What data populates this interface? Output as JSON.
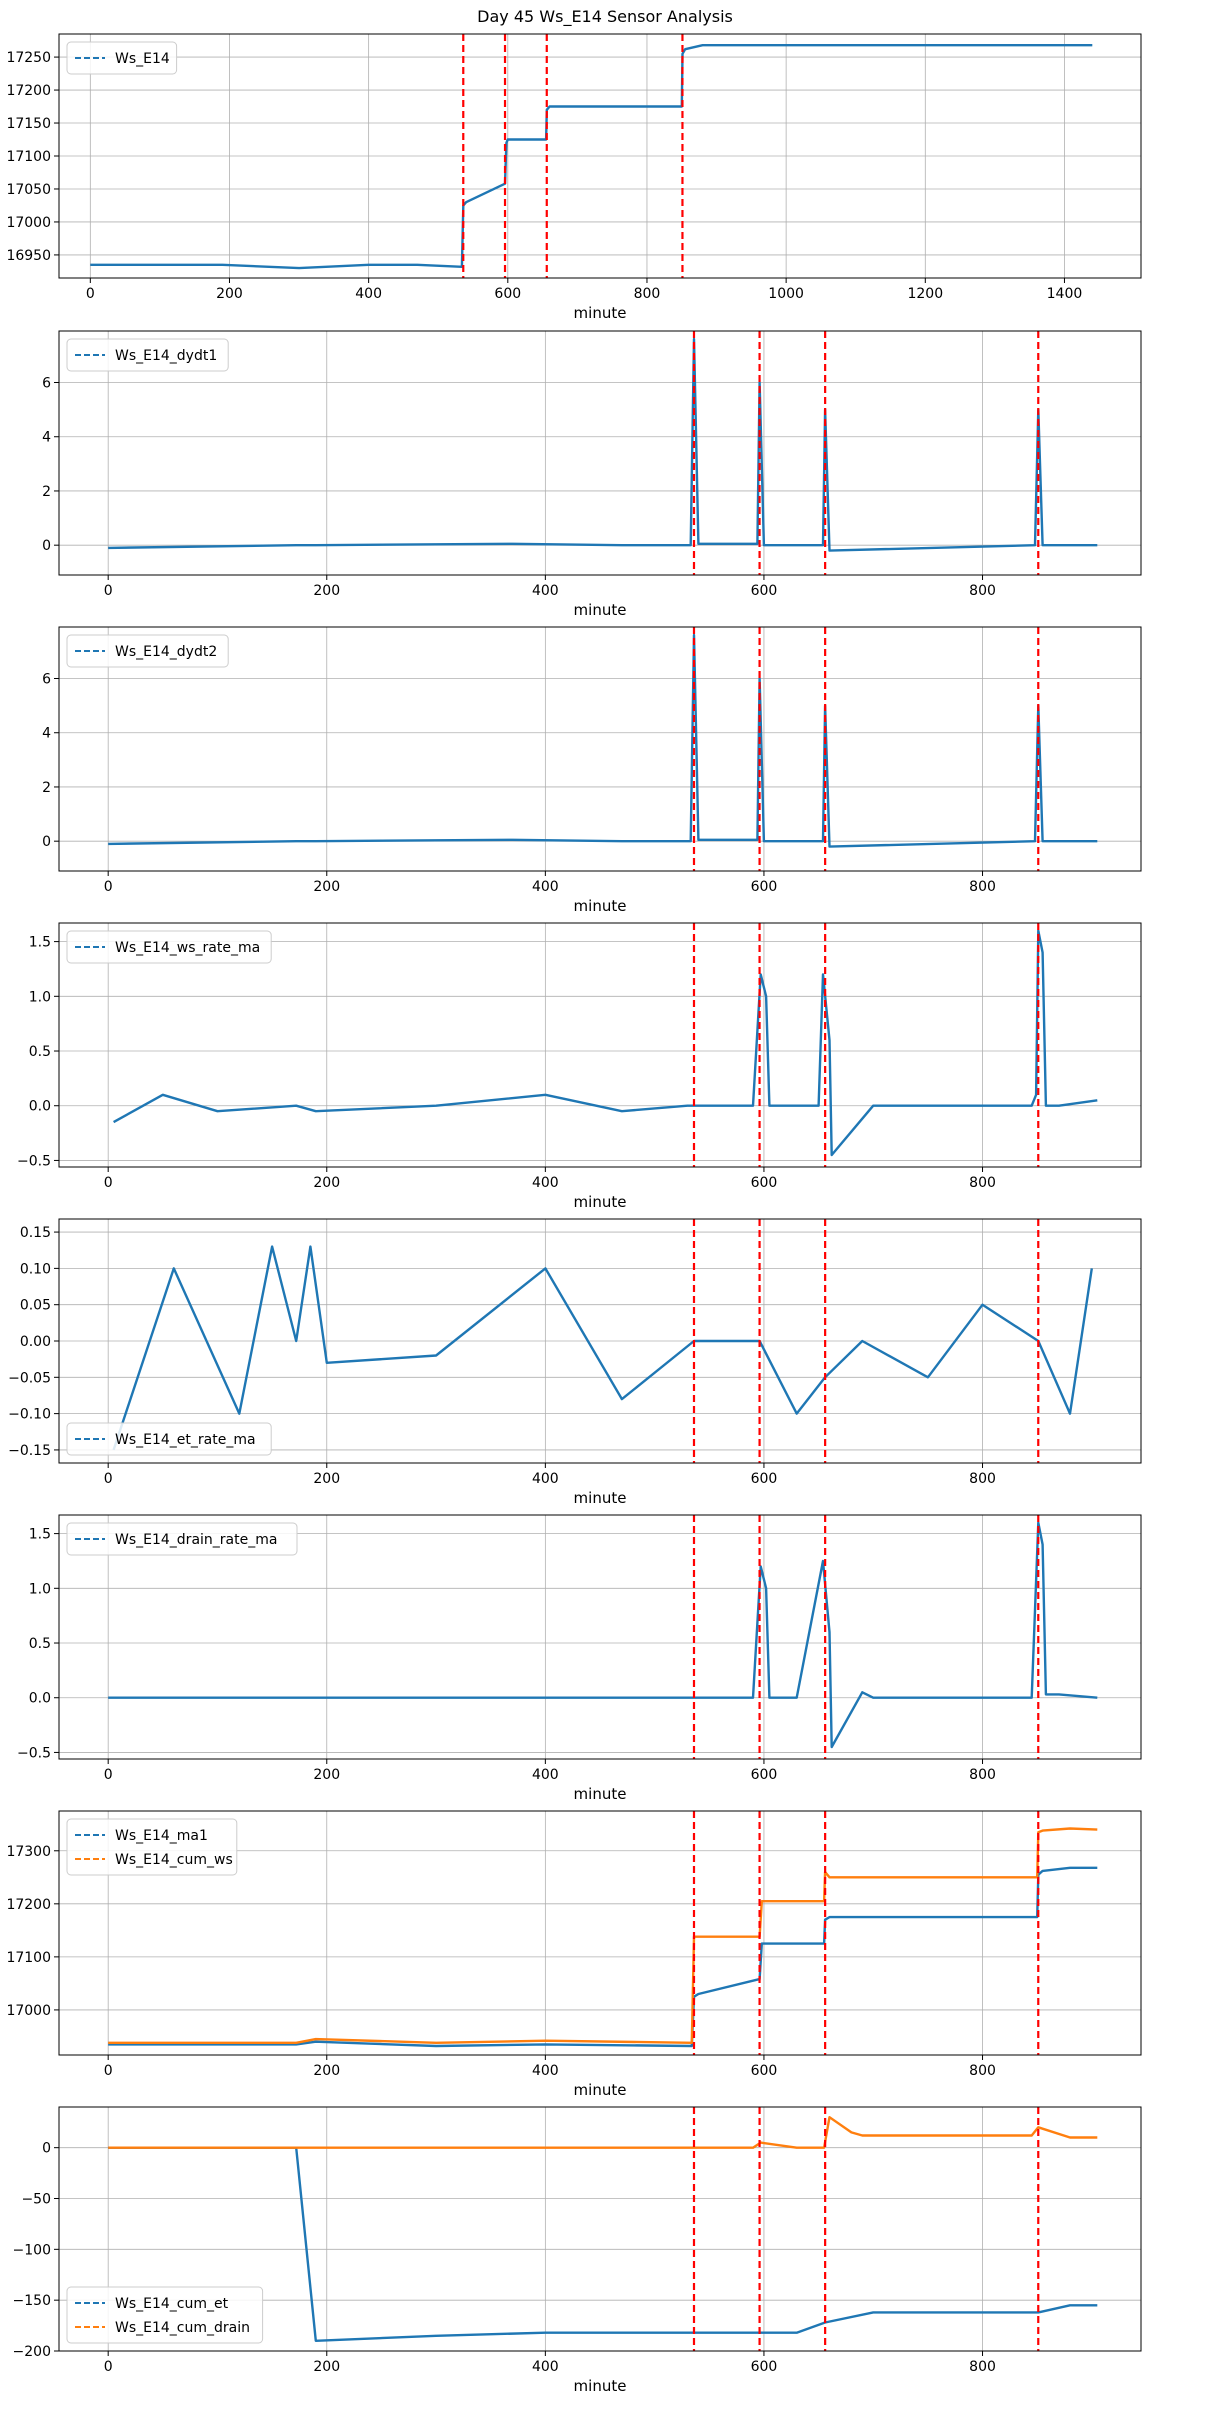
{
  "figure": {
    "title": "Day 45 Ws_E14 Sensor Analysis"
  },
  "colors": {
    "blue": "#1f77b4",
    "orange": "#ff7f0e",
    "event": "#ff0000",
    "grid": "#b0b0b0"
  },
  "chart_data": [
    {
      "type": "line",
      "xlabel": "minute",
      "xlim": [
        -45,
        1510
      ],
      "xticks": [
        0,
        200,
        400,
        600,
        800,
        1000,
        1200,
        1400
      ],
      "ylim": [
        16915,
        17285
      ],
      "yticks": [
        16950,
        17000,
        17050,
        17100,
        17150,
        17200,
        17250
      ],
      "ytick_labels": [
        "16950",
        "17000",
        "17050",
        "17100",
        "17150",
        "17200",
        "17250"
      ],
      "legend": "upper left",
      "event_lines": [
        536,
        596,
        656,
        851
      ],
      "series": [
        {
          "name": "Ws_E14",
          "color": "blue",
          "style": "dashed",
          "x": [
            0,
            172,
            190,
            300,
            400,
            470,
            534,
            536,
            540,
            596,
            598,
            600,
            655,
            656,
            660,
            850,
            851,
            855,
            880,
            905,
            1440
          ],
          "y": [
            16935,
            16935,
            16935,
            16930,
            16935,
            16935,
            16932,
            17025,
            17030,
            17058,
            17120,
            17125,
            17125,
            17170,
            17175,
            17175,
            17255,
            17262,
            17268,
            17268,
            17268
          ]
        }
      ]
    },
    {
      "type": "line",
      "xlabel": "minute",
      "xlim": [
        -45,
        945
      ],
      "xticks": [
        0,
        200,
        400,
        600,
        800
      ],
      "ylim": [
        -1.1,
        7.9
      ],
      "yticks": [
        0,
        2,
        4,
        6
      ],
      "ytick_labels": [
        "0",
        "2",
        "4",
        "6"
      ],
      "legend": "upper left",
      "event_lines": [
        536,
        596,
        656,
        851
      ],
      "series": [
        {
          "name": "Ws_E14_dydt1",
          "color": "blue",
          "style": "dashed",
          "x": [
            0,
            172,
            190,
            370,
            470,
            533,
            536,
            540,
            594,
            596,
            600,
            654,
            656,
            660,
            848,
            851,
            855,
            905
          ],
          "y": [
            -0.1,
            0.0,
            0.0,
            0.05,
            0.0,
            0.0,
            7.6,
            0.05,
            0.05,
            6.0,
            0.0,
            0.0,
            5.0,
            -0.2,
            0.0,
            5.0,
            0.0,
            0.0
          ]
        }
      ]
    },
    {
      "type": "line",
      "xlabel": "minute",
      "xlim": [
        -45,
        945
      ],
      "xticks": [
        0,
        200,
        400,
        600,
        800
      ],
      "ylim": [
        -1.1,
        7.9
      ],
      "yticks": [
        0,
        2,
        4,
        6
      ],
      "ytick_labels": [
        "0",
        "2",
        "4",
        "6"
      ],
      "legend": "upper left",
      "event_lines": [
        536,
        596,
        656,
        851
      ],
      "series": [
        {
          "name": "Ws_E14_dydt2",
          "color": "blue",
          "style": "dashed",
          "x": [
            0,
            172,
            190,
            370,
            470,
            533,
            536,
            540,
            594,
            596,
            600,
            654,
            656,
            660,
            848,
            851,
            855,
            905
          ],
          "y": [
            -0.1,
            0.0,
            0.0,
            0.05,
            0.0,
            0.0,
            7.6,
            0.05,
            0.05,
            6.0,
            0.0,
            0.0,
            5.0,
            -0.2,
            0.0,
            5.0,
            0.0,
            0.0
          ]
        }
      ]
    },
    {
      "type": "line",
      "xlabel": "minute",
      "xlim": [
        -45,
        945
      ],
      "xticks": [
        0,
        200,
        400,
        600,
        800
      ],
      "ylim": [
        -0.56,
        1.67
      ],
      "yticks": [
        -0.5,
        0.0,
        0.5,
        1.0,
        1.5
      ],
      "ytick_labels": [
        "−0.5",
        "0.0",
        "0.5",
        "1.0",
        "1.5"
      ],
      "legend": "upper left",
      "event_lines": [
        536,
        596,
        656,
        851
      ],
      "series": [
        {
          "name": "Ws_E14_ws_rate_ma",
          "color": "blue",
          "style": "dashed",
          "x": [
            5,
            50,
            100,
            172,
            190,
            300,
            400,
            470,
            530,
            590,
            597,
            602,
            605,
            650,
            654,
            660,
            662,
            700,
            800,
            845,
            849,
            851,
            855,
            858,
            870,
            905
          ],
          "y": [
            -0.15,
            0.1,
            -0.05,
            0.0,
            -0.05,
            0.0,
            0.1,
            -0.05,
            0.0,
            0.0,
            1.2,
            1.0,
            0.0,
            0.0,
            1.2,
            0.6,
            -0.45,
            0.0,
            0.0,
            0.0,
            0.1,
            1.6,
            1.4,
            0.0,
            0.0,
            0.05
          ]
        }
      ]
    },
    {
      "type": "line",
      "xlabel": "minute",
      "xlim": [
        -45,
        945
      ],
      "xticks": [
        0,
        200,
        400,
        600,
        800
      ],
      "ylim": [
        -0.168,
        0.168
      ],
      "yticks": [
        -0.15,
        -0.1,
        -0.05,
        0.0,
        0.05,
        0.1,
        0.15
      ],
      "ytick_labels": [
        "−0.15",
        "−0.10",
        "−0.05",
        "0.00",
        "0.05",
        "0.10",
        "0.15"
      ],
      "legend": "lower left",
      "event_lines": [
        536,
        596,
        656,
        851
      ],
      "series": [
        {
          "name": "Ws_E14_et_rate_ma",
          "color": "blue",
          "style": "dashed",
          "x": [
            5,
            60,
            120,
            150,
            172,
            185,
            200,
            300,
            400,
            470,
            536,
            596,
            630,
            656,
            690,
            750,
            800,
            851,
            880,
            900
          ],
          "y": [
            -0.15,
            0.1,
            -0.1,
            0.13,
            0.0,
            0.13,
            -0.03,
            -0.02,
            0.1,
            -0.08,
            0.0,
            0.0,
            -0.1,
            -0.05,
            0.0,
            -0.05,
            0.05,
            0.0,
            -0.1,
            0.1
          ]
        }
      ]
    },
    {
      "type": "line",
      "xlabel": "minute",
      "xlim": [
        -45,
        945
      ],
      "xticks": [
        0,
        200,
        400,
        600,
        800
      ],
      "ylim": [
        -0.56,
        1.67
      ],
      "yticks": [
        -0.5,
        0.0,
        0.5,
        1.0,
        1.5
      ],
      "ytick_labels": [
        "−0.5",
        "0.0",
        "0.5",
        "1.0",
        "1.5"
      ],
      "legend": "upper left",
      "event_lines": [
        536,
        596,
        656,
        851
      ],
      "series": [
        {
          "name": "Ws_E14_drain_rate_ma",
          "color": "blue",
          "style": "dashed",
          "x": [
            0,
            172,
            190,
            590,
            597,
            602,
            605,
            630,
            654,
            660,
            662,
            690,
            700,
            845,
            851,
            855,
            858,
            870,
            905
          ],
          "y": [
            0.0,
            0.0,
            0.0,
            0.0,
            1.2,
            1.0,
            0.0,
            0.0,
            1.25,
            0.6,
            -0.45,
            0.05,
            0.0,
            0.0,
            1.6,
            1.4,
            0.03,
            0.03,
            0.0
          ]
        }
      ]
    },
    {
      "type": "line",
      "xlabel": "minute",
      "xlim": [
        -45,
        945
      ],
      "xticks": [
        0,
        200,
        400,
        600,
        800
      ],
      "ylim": [
        16915,
        17375
      ],
      "yticks": [
        17000,
        17100,
        17200,
        17300
      ],
      "ytick_labels": [
        "17000",
        "17100",
        "17200",
        "17300"
      ],
      "legend": "upper left",
      "event_lines": [
        536,
        596,
        656,
        851
      ],
      "series": [
        {
          "name": "Ws_E14_ma1",
          "color": "blue",
          "style": "dashed",
          "x": [
            0,
            172,
            190,
            300,
            400,
            534,
            536,
            540,
            596,
            598,
            655,
            656,
            660,
            850,
            851,
            855,
            880,
            905
          ],
          "y": [
            16935,
            16935,
            16940,
            16932,
            16935,
            16932,
            17025,
            17030,
            17058,
            17125,
            17125,
            17170,
            17175,
            17175,
            17255,
            17262,
            17268,
            17268
          ]
        },
        {
          "name": "Ws_E14_cum_ws",
          "color": "orange",
          "style": "dashed",
          "x": [
            0,
            172,
            190,
            300,
            400,
            534,
            536,
            596,
            598,
            655,
            656,
            660,
            850,
            851,
            855,
            880,
            905
          ],
          "y": [
            16938,
            16938,
            16945,
            16938,
            16942,
            16938,
            17138,
            17138,
            17205,
            17205,
            17260,
            17250,
            17250,
            17335,
            17338,
            17342,
            17340
          ]
        }
      ]
    },
    {
      "type": "line",
      "xlabel": "minute",
      "xlim": [
        -45,
        945
      ],
      "xticks": [
        0,
        200,
        400,
        600,
        800
      ],
      "ylim": [
        -200,
        40
      ],
      "yticks": [
        -200,
        -150,
        -100,
        -50,
        0
      ],
      "ytick_labels": [
        "−200",
        "−150",
        "−100",
        "−50",
        "0"
      ],
      "legend": "lower left",
      "event_lines": [
        536,
        596,
        656,
        851
      ],
      "series": [
        {
          "name": "Ws_E14_cum_et",
          "color": "blue",
          "style": "dashed",
          "x": [
            0,
            172,
            190,
            300,
            400,
            536,
            596,
            630,
            656,
            700,
            800,
            851,
            880,
            905
          ],
          "y": [
            0,
            0,
            -190,
            -185,
            -182,
            -182,
            -182,
            -182,
            -172,
            -162,
            -162,
            -162,
            -155,
            -155
          ]
        },
        {
          "name": "Ws_E14_cum_drain",
          "color": "orange",
          "style": "dashed",
          "x": [
            0,
            172,
            190,
            590,
            597,
            630,
            655,
            660,
            680,
            690,
            845,
            851,
            880,
            905
          ],
          "y": [
            0,
            0,
            0,
            0,
            5,
            0,
            0,
            30,
            15,
            12,
            12,
            20,
            10,
            10
          ]
        }
      ]
    }
  ]
}
